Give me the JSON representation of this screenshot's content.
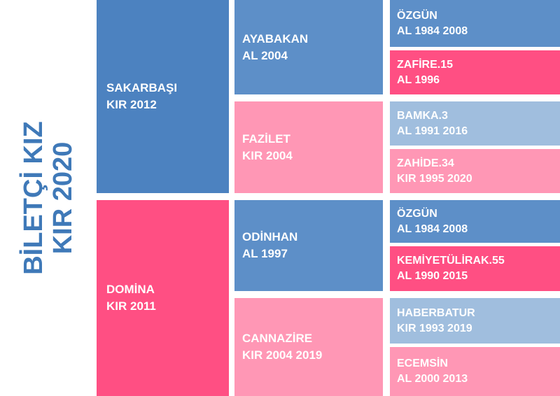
{
  "title": {
    "line1": "BİLETÇİ KIZ",
    "line2": "KIR 2020"
  },
  "colors": {
    "male": "#4c82c0",
    "male_light": "#a0bede",
    "female": "#ff4f83",
    "female_light": "#ff97b5",
    "title": "#3f79b8"
  },
  "sire": {
    "name": "SAKARBAŞI",
    "info": "KIR 2012"
  },
  "dam": {
    "name": "DOMİNA",
    "info": "KIR 2011"
  },
  "sire_sire": {
    "name": "AYABAKAN",
    "info": "AL 2004"
  },
  "sire_dam": {
    "name": "FAZİLET",
    "info": "KIR 2004"
  },
  "dam_sire": {
    "name": "ODİNHAN",
    "info": "AL 1997"
  },
  "dam_dam": {
    "name": "CANNAZİRE",
    "info": "KIR 2004 2019"
  },
  "g3": [
    {
      "name": "ÖZGÜN",
      "info": "AL 1984 2008"
    },
    {
      "name": "ZAFİRE.15",
      "info": "AL 1996"
    },
    {
      "name": "BAMKA.3",
      "info": "AL 1991 2016"
    },
    {
      "name": "ZAHİDE.34",
      "info": "KIR 1995 2020"
    },
    {
      "name": "ÖZGÜN",
      "info": "AL 1984 2008"
    },
    {
      "name": "KEMİYETÜLİRAK.55",
      "info": "AL 1990 2015"
    },
    {
      "name": "HABERBATUR",
      "info": "KIR 1993 2019"
    },
    {
      "name": "ECEMSİN",
      "info": "AL 2000 2013"
    }
  ]
}
